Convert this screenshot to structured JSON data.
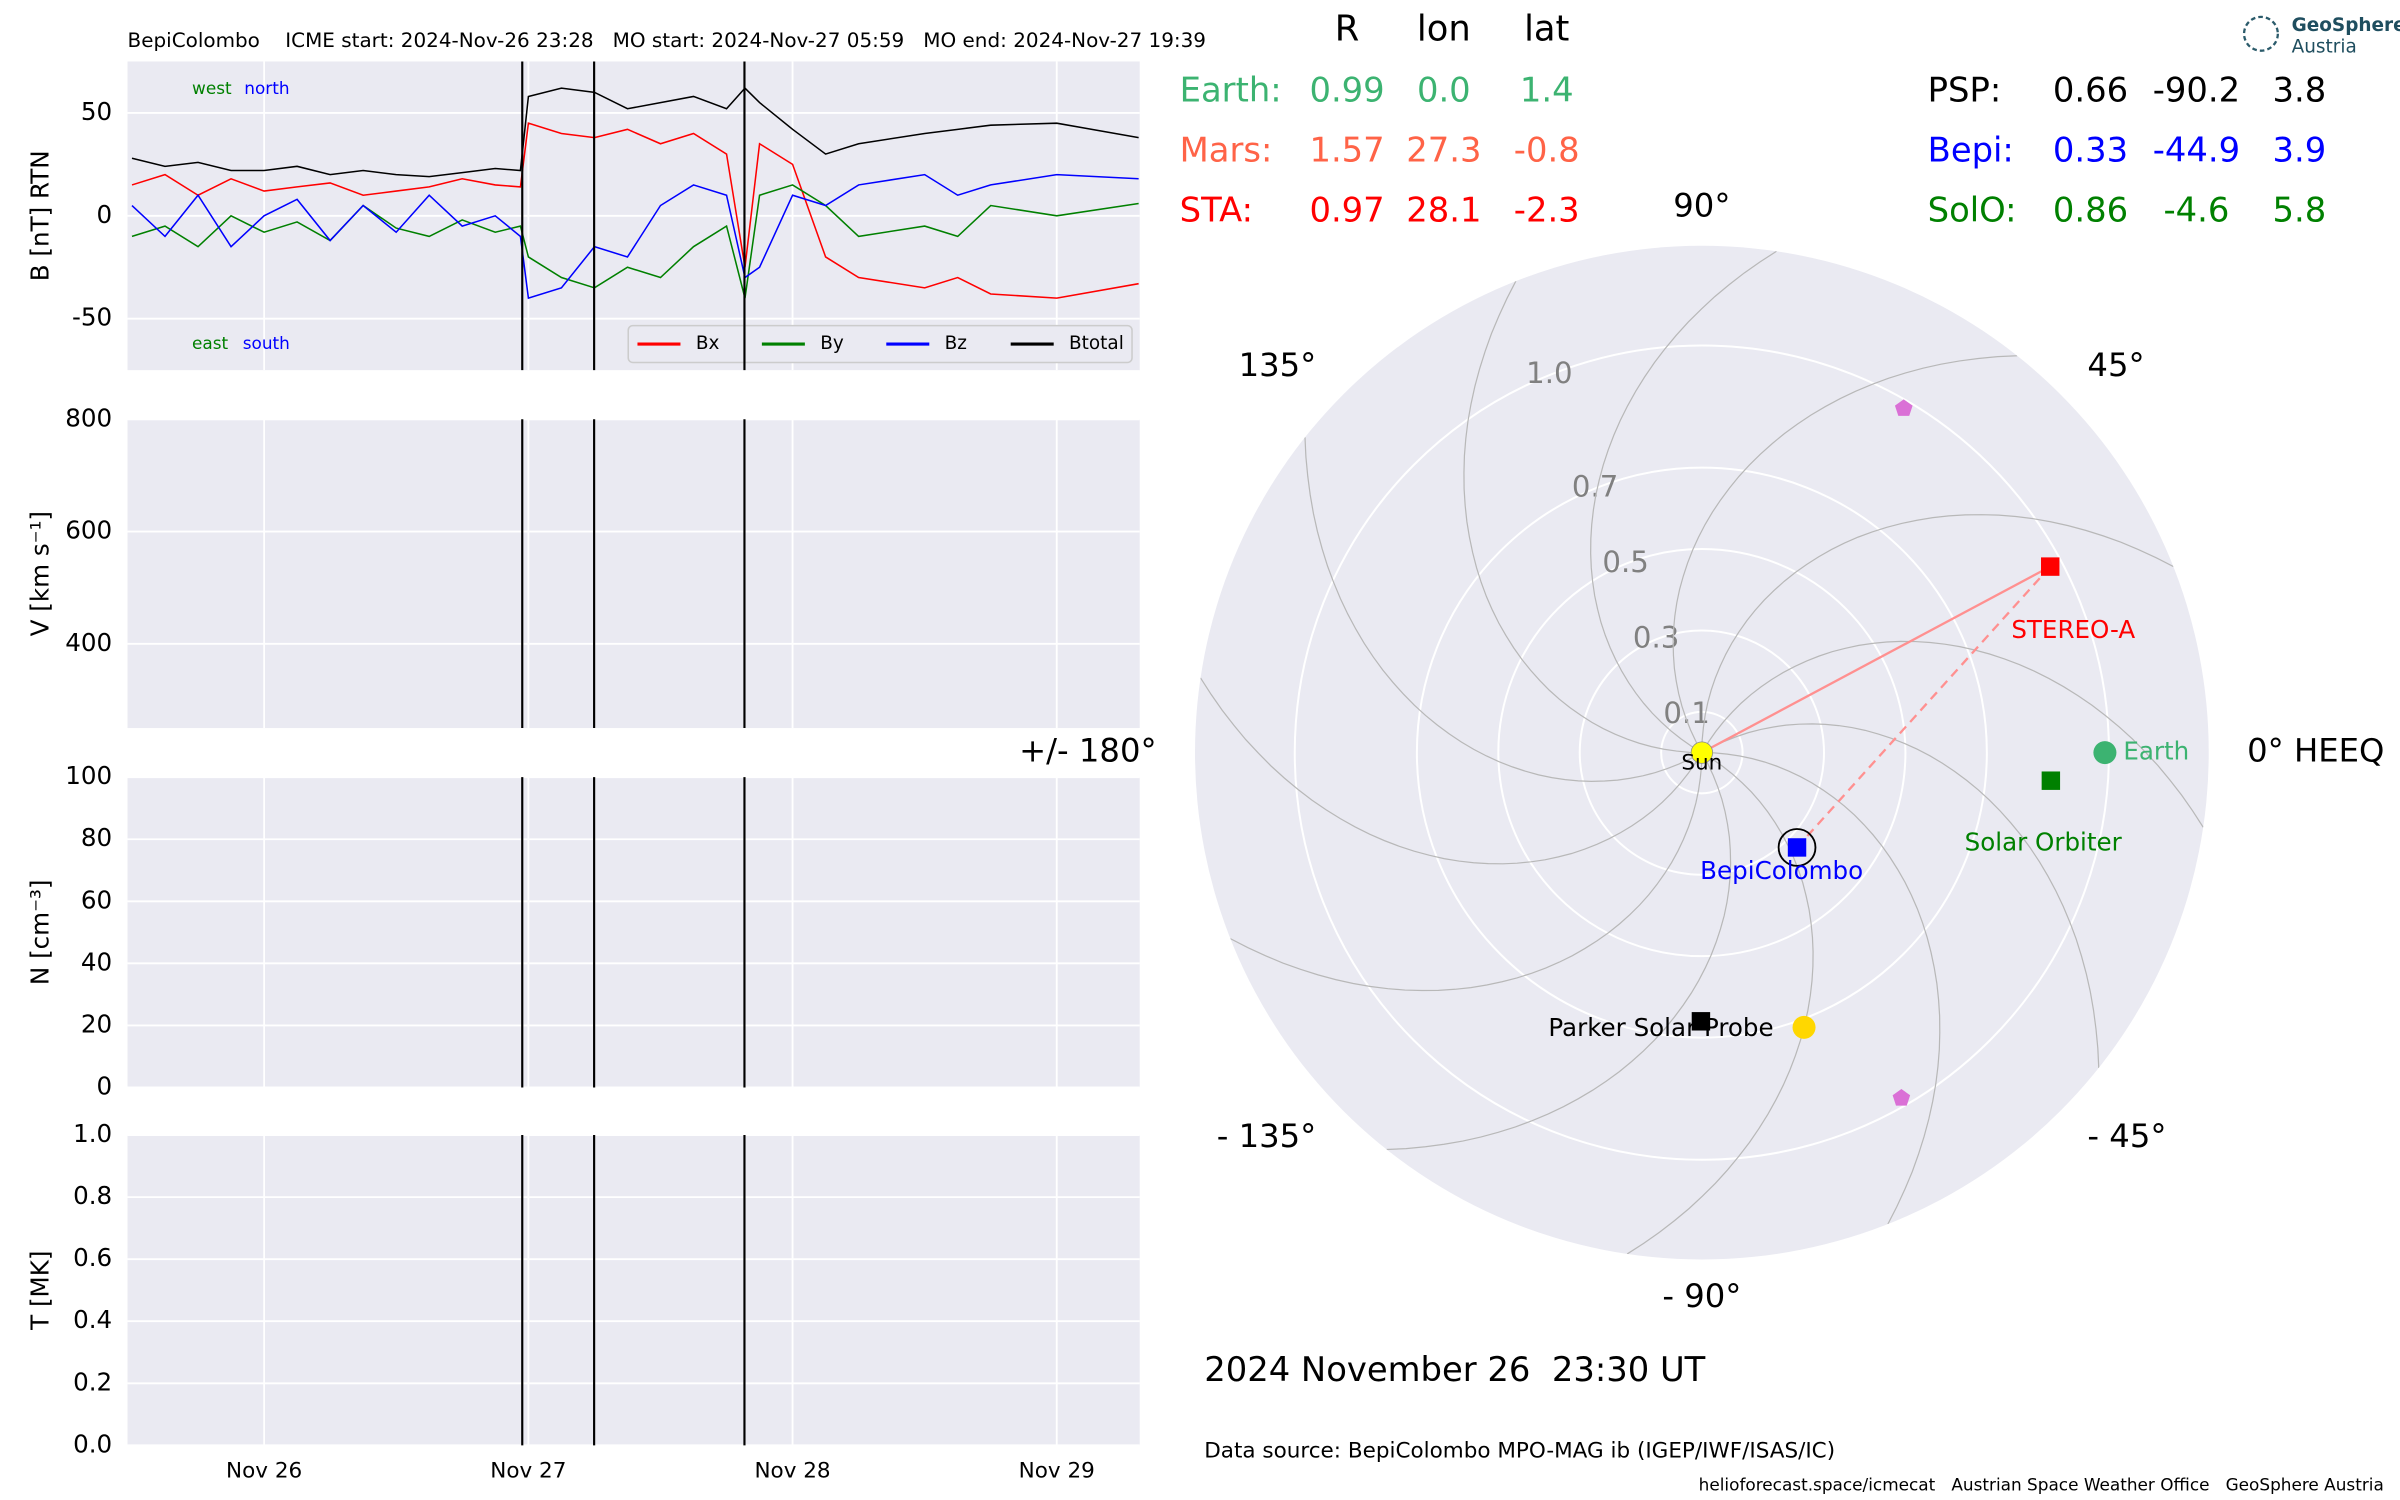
{
  "chart_data": [
    {
      "type": "line",
      "title": "BepiColombo    ICME start: 2024-Nov-26 23:28   MO start: 2024-Nov-27 05:59   MO end: 2024-Nov-27 19:39",
      "ylabel": "B [nT] RTN",
      "x": [
        25.5,
        25.625,
        25.75,
        25.875,
        26,
        26.125,
        26.25,
        26.375,
        26.5,
        26.625,
        26.75,
        26.875,
        26.97,
        27,
        27.125,
        27.25,
        27.375,
        27.5,
        27.625,
        27.75,
        27.82,
        27.875,
        28,
        28.125,
        28.25,
        28.5,
        28.625,
        28.75,
        29,
        29.31
      ],
      "series": [
        {
          "name": "Bx",
          "color": "#ff0000",
          "values": [
            15,
            20,
            10,
            18,
            12,
            14,
            16,
            10,
            12,
            14,
            18,
            15,
            14,
            45,
            40,
            38,
            42,
            35,
            40,
            30,
            -25,
            35,
            25,
            -20,
            -30,
            -35,
            -30,
            -38,
            -40,
            -33
          ]
        },
        {
          "name": "By",
          "color": "#008000",
          "values": [
            -10,
            -5,
            -15,
            0,
            -8,
            -3,
            -12,
            5,
            -6,
            -10,
            -2,
            -8,
            -5,
            -20,
            -30,
            -35,
            -25,
            -30,
            -15,
            -5,
            -40,
            10,
            15,
            5,
            -10,
            -5,
            -10,
            5,
            0,
            6
          ]
        },
        {
          "name": "Bz",
          "color": "#0000ff",
          "values": [
            5,
            -10,
            10,
            -15,
            0,
            8,
            -12,
            5,
            -8,
            10,
            -5,
            0,
            -10,
            -40,
            -35,
            -15,
            -20,
            5,
            15,
            10,
            -30,
            -25,
            10,
            5,
            15,
            20,
            10,
            15,
            20,
            18
          ]
        },
        {
          "name": "Btotal",
          "color": "#000000",
          "values": [
            28,
            24,
            26,
            22,
            22,
            24,
            20,
            22,
            20,
            19,
            21,
            23,
            22,
            58,
            62,
            60,
            52,
            55,
            58,
            52,
            62,
            55,
            42,
            30,
            35,
            40,
            42,
            44,
            45,
            38
          ]
        }
      ],
      "xlim": [
        25.483,
        29.314
      ],
      "xticks": [
        {
          "value": 26,
          "label": "Nov 26"
        },
        {
          "value": 27,
          "label": "Nov 27"
        },
        {
          "value": 28,
          "label": "Nov 28"
        },
        {
          "value": 29,
          "label": "Nov 29"
        }
      ],
      "ylim": [
        -75,
        75
      ],
      "yticks": [
        -50,
        0,
        50
      ],
      "events": [
        26.977,
        27.249,
        27.818
      ],
      "annotations": [
        {
          "text": "west",
          "color": "#008000"
        },
        {
          "text": "north",
          "color": "#0000ff"
        },
        {
          "text": "east",
          "color": "#008000"
        },
        {
          "text": "south",
          "color": "#0000ff"
        }
      ],
      "grid": true,
      "legend": "lower right"
    },
    {
      "type": "line",
      "ylabel": "V [km s⁻¹]",
      "ylim": [
        250,
        800
      ],
      "yticks": [
        400,
        600,
        800
      ]
    },
    {
      "type": "line",
      "ylabel": "N [cm⁻³]",
      "ylim": [
        0,
        100
      ],
      "yticks": [
        0,
        20,
        40,
        60,
        80,
        100
      ]
    },
    {
      "type": "line",
      "ylabel": "T [MK]",
      "ylim": [
        0,
        1
      ],
      "yticks": [
        {
          "value": 0,
          "label": "0.0"
        },
        {
          "value": 0.2,
          "label": "0.2"
        },
        {
          "value": 0.4,
          "label": "0.4"
        },
        {
          "value": 0.6,
          "label": "0.6"
        },
        {
          "value": 0.8,
          "label": "0.8"
        },
        {
          "value": 1,
          "label": "1.0"
        }
      ]
    },
    {
      "type": "polar",
      "rlim": [
        0,
        1.245
      ],
      "rticks": [
        0.1,
        0.3,
        0.5,
        0.7,
        {
          "value": 1,
          "label": "1.0"
        }
      ],
      "angle_ticks": [
        {
          "value": 0,
          "label": "0° HEEQ"
        },
        {
          "value": 45,
          "label": "45°"
        },
        {
          "value": 90,
          "label": "90°"
        },
        {
          "value": 135,
          "label": "135°"
        },
        {
          "value": 180,
          "label": "+/- 180°"
        },
        {
          "value": -135,
          "label": "- 135°"
        },
        {
          "value": -90,
          "label": "- 90°"
        },
        {
          "value": -45,
          "label": "- 45°"
        }
      ],
      "table_headers": [
        "R",
        "lon",
        "lat"
      ],
      "bodies": [
        {
          "name": "Earth:",
          "color": "#3cb371",
          "r": 0.99,
          "lon": 0,
          "lon_label": "0.0",
          "lat": 1.4,
          "marker": "circle",
          "label": "Earth"
        },
        {
          "name": "Mars:",
          "color": "#ff6347",
          "r": 1.57,
          "lon": 27.3,
          "lat": -0.8
        },
        {
          "name": "STA:",
          "color": "#ff0000",
          "r": 0.97,
          "lon": 28.1,
          "lat": -2.3,
          "marker": "square",
          "label": "STEREO-A"
        },
        {
          "name": "PSP:",
          "color": "#000000",
          "r": 0.66,
          "lon": -90.2,
          "lat": 3.8,
          "marker": "square",
          "label": "Parker Solar Probe"
        },
        {
          "name": "Bepi:",
          "color": "#0000ff",
          "r": 0.33,
          "lon": -44.9,
          "lat": 3.9,
          "marker": "square",
          "label": "BepiColombo"
        },
        {
          "name": "SolO:",
          "color": "#008000",
          "r": 0.86,
          "lon": -4.6,
          "lat": 5.8,
          "marker": "square",
          "label": "Solar Orbiter"
        }
      ],
      "sun": {
        "label": "Sun",
        "color": "#ffff00"
      },
      "other_objects": [
        {
          "r": 0.72,
          "lon": -69.6,
          "color": "#ffd700",
          "marker": "circle"
        },
        {
          "r": 0.98,
          "lon": 59.6,
          "color": "#da70d6",
          "marker": "pentagon"
        },
        {
          "r": 0.98,
          "lon": -60,
          "color": "#da70d6",
          "marker": "pentagon"
        }
      ]
    }
  ],
  "date": "2024 November 26  23:30 UT",
  "data_source": "Data source: BepiColombo MPO-MAG ib (IGEP/IWF/ISAS/IC)",
  "footer": "helioforecast.space/icmecat   Austrian Space Weather Office   GeoSphere Austria",
  "logo": [
    "GeoSphere",
    "Austria"
  ]
}
